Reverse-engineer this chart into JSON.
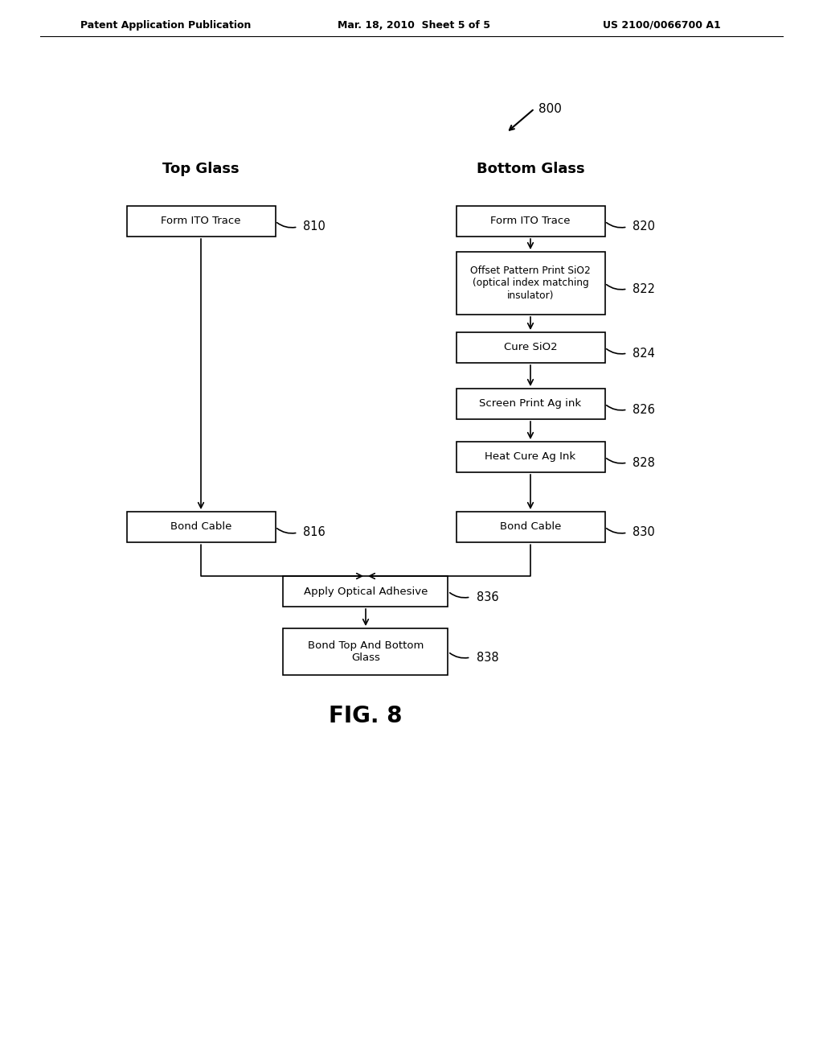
{
  "bg_color": "#ffffff",
  "header_left": "Patent Application Publication",
  "header_mid": "Mar. 18, 2010  Sheet 5 of 5",
  "header_right": "US 2100/0066700 A1",
  "fig_label": "FIG. 8",
  "fig_number": "800",
  "top_glass_label": "Top Glass",
  "bottom_glass_label": "Bottom Glass",
  "boxes": [
    {
      "id": "810",
      "label": "Form ITO Trace",
      "col": "left",
      "row": 0
    },
    {
      "id": "816",
      "label": "Bond Cable",
      "col": "left",
      "row": 1
    },
    {
      "id": "820",
      "label": "Form ITO Trace",
      "col": "right",
      "row": 0
    },
    {
      "id": "822",
      "label": "Offset Pattern Print SiO2\n(optical index matching\ninsulator)",
      "col": "right",
      "row": 1
    },
    {
      "id": "824",
      "label": "Cure SiO2",
      "col": "right",
      "row": 2
    },
    {
      "id": "826",
      "label": "Screen Print Ag ink",
      "col": "right",
      "row": 3
    },
    {
      "id": "828",
      "label": "Heat Cure Ag Ink",
      "col": "right",
      "row": 4
    },
    {
      "id": "830",
      "label": "Bond Cable",
      "col": "right",
      "row": 5
    },
    {
      "id": "836",
      "label": "Apply Optical Adhesive",
      "col": "center",
      "row": 6
    },
    {
      "id": "838",
      "label": "Bond Top And Bottom\nGlass",
      "col": "center",
      "row": 7
    }
  ]
}
